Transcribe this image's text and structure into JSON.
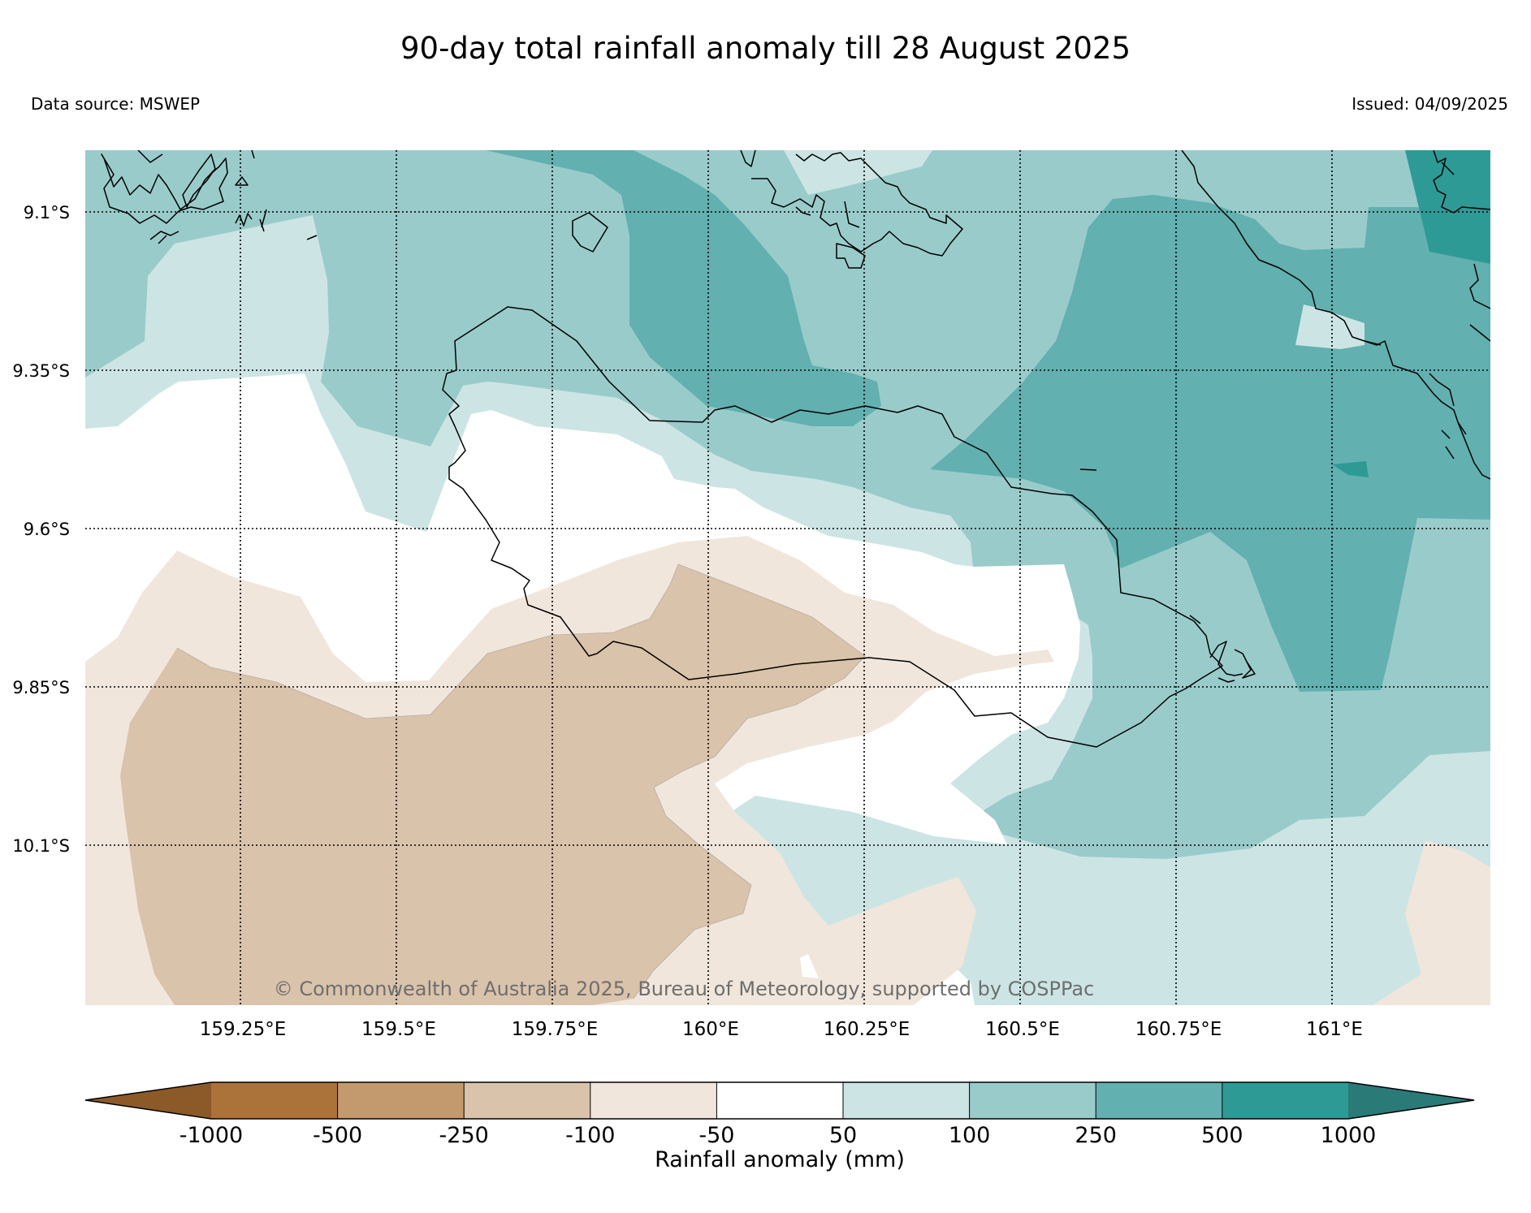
{
  "title": "90-day total rainfall anomaly till 28 August 2025",
  "data_source": "Data source: MSWEP",
  "issued": "Issued: 04/09/2025",
  "copyright": "© Commonwealth of Australia 2025, Bureau of Meteorology, supported by COSPPac",
  "latitude_labels": [
    "9.1°S",
    "9.35°S",
    "9.6°S",
    "9.85°S",
    "10.1°S"
  ],
  "longitude_labels": [
    "159.25°E",
    "159.5°E",
    "159.75°E",
    "160°E",
    "160.25°E",
    "160.5°E",
    "160.75°E",
    "161°E"
  ],
  "colorbar": {
    "label": "Rainfall anomaly (mm)",
    "ticks": [
      "-1000",
      "-500",
      "-250",
      "-100",
      "-50",
      "50",
      "100",
      "250",
      "500",
      "1000"
    ],
    "colors": {
      "below_-1000": "#8c5a28",
      "-1000_to_-500": "#ab7239",
      "-500_to_-250": "#c39a6e",
      "-250_to_-100": "#dac3ab",
      "-100_to_-50": "#f0e6dc",
      "-50_to_50": "#ffffff",
      "50_to_100": "#cce5e4",
      "100_to_250": "#9acbcb",
      "250_to_500": "#62b0b0",
      "500_to_1000": "#2e9a96",
      "above_1000": "#2a7a78"
    }
  }
}
